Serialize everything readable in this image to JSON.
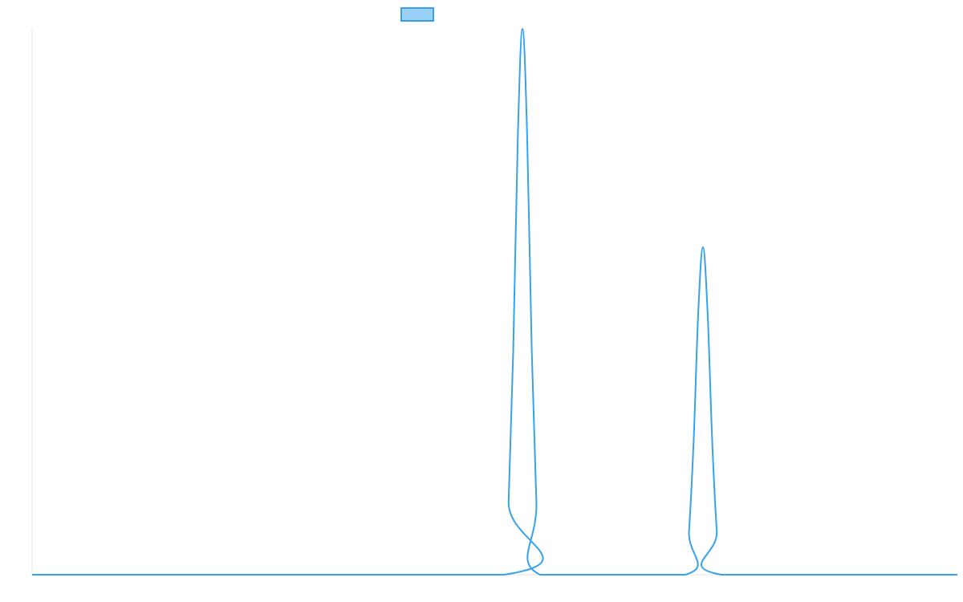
{
  "chart_data": {
    "type": "line",
    "title": "",
    "xlabel": "",
    "ylabel": "",
    "legend": {
      "placement": "top-center",
      "entries": [
        {
          "name": "",
          "fill_color": "#9AD0F5",
          "stroke_color": "#36A2EB"
        }
      ]
    },
    "grid": false,
    "xlim": [
      0,
      1000
    ],
    "ylim": [
      0,
      100
    ],
    "series": [
      {
        "name": "",
        "color": "#36A2EB",
        "x": [
          0,
          510,
          515,
          520,
          525,
          530,
          535,
          540,
          545,
          549,
          706,
          710,
          715,
          720,
          725,
          730,
          735,
          740,
          745,
          1000
        ],
        "y": [
          0,
          0,
          13.4,
          41.1,
          80.6,
          100,
          80.6,
          41.1,
          13.4,
          0,
          0,
          8.0,
          24.6,
          48.2,
          60,
          48.2,
          24.6,
          8.0,
          0,
          0
        ]
      }
    ]
  }
}
